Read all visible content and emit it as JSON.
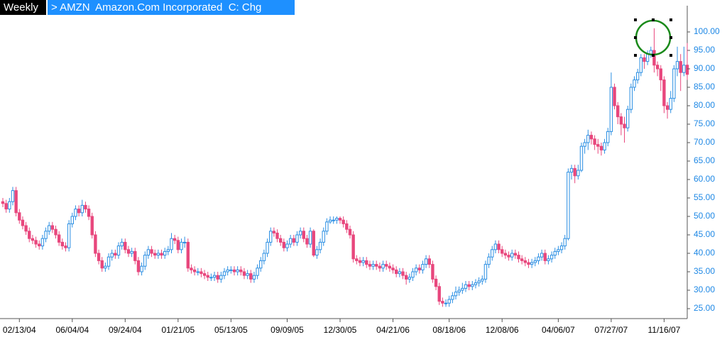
{
  "chart_data": {
    "type": "candlestick",
    "timeframe": "Weekly",
    "title": "> AMZN  Amazon.Com Incorporated  C: Chg",
    "up_color": "#2b8fe3",
    "down_color": "#e8477d",
    "ylim": [
      22.5,
      105
    ],
    "yticks": [
      {
        "value": 25,
        "label": "25.00"
      },
      {
        "value": 30,
        "label": "30.00"
      },
      {
        "value": 35,
        "label": "35.00"
      },
      {
        "value": 40,
        "label": "40.00"
      },
      {
        "value": 45,
        "label": "45.00"
      },
      {
        "value": 50,
        "label": "50.00"
      },
      {
        "value": 55,
        "label": "55.00"
      },
      {
        "value": 60,
        "label": "60.00"
      },
      {
        "value": 65,
        "label": "65.00"
      },
      {
        "value": 70,
        "label": "70.00"
      },
      {
        "value": 75,
        "label": "75.00"
      },
      {
        "value": 80,
        "label": "80.00"
      },
      {
        "value": 85,
        "label": "85.00"
      },
      {
        "value": 90,
        "label": "90.00"
      },
      {
        "value": 95,
        "label": "95.00"
      },
      {
        "value": 100,
        "label": "100.00"
      }
    ],
    "categories": [
      null,
      null,
      null,
      null,
      null,
      "02/13/04",
      null,
      null,
      null,
      null,
      null,
      null,
      null,
      null,
      null,
      null,
      null,
      null,
      null,
      null,
      null,
      "06/04/04",
      null,
      null,
      null,
      null,
      null,
      null,
      null,
      null,
      null,
      null,
      null,
      null,
      null,
      null,
      null,
      "09/24/04",
      null,
      null,
      null,
      null,
      null,
      null,
      null,
      null,
      null,
      null,
      null,
      null,
      null,
      null,
      null,
      "01/21/05",
      null,
      null,
      null,
      null,
      null,
      null,
      null,
      null,
      null,
      null,
      null,
      null,
      null,
      null,
      null,
      "05/13/05",
      null,
      null,
      null,
      null,
      null,
      null,
      null,
      null,
      null,
      null,
      null,
      null,
      null,
      null,
      null,
      null,
      "09/09/05",
      null,
      null,
      null,
      null,
      null,
      null,
      null,
      null,
      null,
      null,
      null,
      null,
      null,
      null,
      null,
      "12/30/05",
      null,
      null,
      null,
      null,
      null,
      null,
      null,
      null,
      null,
      null,
      null,
      null,
      null,
      null,
      null,
      "04/21/06",
      null,
      null,
      null,
      null,
      null,
      null,
      null,
      null,
      null,
      null,
      null,
      null,
      null,
      null,
      null,
      null,
      "08/18/06",
      null,
      null,
      null,
      null,
      null,
      null,
      null,
      null,
      null,
      null,
      null,
      null,
      null,
      null,
      null,
      "12/08/06",
      null,
      null,
      null,
      null,
      null,
      null,
      null,
      null,
      null,
      null,
      null,
      null,
      null,
      null,
      null,
      null,
      "04/06/07",
      null,
      null,
      null,
      null,
      null,
      null,
      null,
      null,
      null,
      null,
      null,
      null,
      null,
      null,
      null,
      "07/27/07",
      null,
      null,
      null,
      null,
      null,
      null,
      null,
      null,
      null,
      null,
      null,
      null,
      null,
      null,
      null,
      "11/16/07",
      null,
      null,
      null,
      null,
      null,
      null,
      null
    ],
    "open": [
      54,
      53.5,
      52,
      54,
      57,
      51,
      49,
      47.5,
      46,
      44,
      43.5,
      42.5,
      42,
      44,
      46,
      47.5,
      46.5,
      45,
      43,
      42,
      41.5,
      48,
      50,
      52,
      51,
      53,
      52,
      50,
      45,
      40,
      38,
      36,
      36.5,
      39,
      40,
      39.5,
      42,
      43,
      41,
      40,
      40.5,
      38,
      35,
      36.5,
      39.5,
      41,
      40,
      39.5,
      40,
      39.5,
      40.5,
      41,
      44,
      43.5,
      41,
      43,
      43,
      36,
      35.5,
      35,
      35,
      34.5,
      34,
      33.5,
      33.5,
      34,
      33,
      34,
      35,
      35.5,
      35.5,
      35,
      35.5,
      35,
      34,
      34.5,
      33,
      34,
      36,
      38,
      40,
      43,
      46,
      45.5,
      44,
      43,
      41.5,
      42.5,
      44,
      43,
      45,
      46,
      44,
      42.5,
      46,
      39.5,
      41,
      43,
      46,
      48.5,
      49,
      49,
      49.5,
      49,
      48,
      46.5,
      45,
      38.5,
      38,
      37.5,
      38,
      37,
      36.5,
      37,
      36.5,
      36,
      37,
      36.5,
      36,
      35.5,
      34.5,
      35,
      34,
      33,
      33.5,
      35,
      36,
      35.5,
      37,
      38.5,
      37,
      33,
      31,
      27,
      26.5,
      26.5,
      27.5,
      28.5,
      29.5,
      30,
      30.5,
      31.5,
      31,
      31.5,
      32,
      32.5,
      33,
      37,
      39,
      41,
      42.5,
      41,
      40,
      39.5,
      39,
      40,
      39.5,
      38.5,
      38,
      37.5,
      37,
      37.5,
      38,
      39,
      40,
      38,
      38.5,
      39.5,
      40.5,
      41,
      42,
      44,
      62,
      63,
      61,
      62.5,
      69,
      70,
      72,
      71,
      69.5,
      69,
      68,
      70,
      73,
      85,
      80,
      77,
      75,
      74,
      79,
      85,
      87,
      89,
      93,
      92,
      94,
      95,
      91,
      90,
      87,
      80,
      79,
      82,
      90,
      92,
      89,
      91
    ],
    "high": [
      55,
      54.5,
      55,
      58,
      58,
      52,
      50,
      48.5,
      47,
      45,
      44.5,
      43.5,
      45,
      47,
      48.5,
      48.5,
      47.5,
      46,
      44,
      43,
      49,
      51,
      53,
      53,
      54.5,
      54,
      53,
      51,
      46,
      41,
      39,
      37.5,
      40,
      41,
      41,
      43,
      44,
      44,
      42,
      41.5,
      41.5,
      39,
      37.5,
      40.5,
      42,
      42,
      41,
      41,
      41,
      41.5,
      42,
      45.5,
      45,
      44.5,
      44,
      44.5,
      44,
      37,
      36.5,
      36,
      36,
      35.5,
      35,
      34.5,
      35,
      35,
      35,
      36,
      36.5,
      36.5,
      36.5,
      36.5,
      36.5,
      36,
      35.5,
      35.5,
      35,
      37,
      39,
      41,
      44,
      47,
      47,
      46.5,
      45,
      44,
      43.5,
      45,
      45,
      46,
      47,
      47,
      45,
      47,
      46.5,
      42,
      44,
      47,
      49.5,
      50,
      50,
      50,
      50,
      50,
      49,
      47.5,
      46,
      39.5,
      39,
      39,
      39,
      38,
      38,
      38,
      37.5,
      38,
      38,
      37.5,
      37,
      36.5,
      36,
      36,
      35,
      34.5,
      36,
      37,
      37,
      38,
      39.5,
      39.5,
      38,
      34,
      32,
      28,
      27.5,
      28.5,
      29.5,
      31,
      31,
      32,
      32.5,
      32.5,
      32.5,
      33,
      33.5,
      34,
      38,
      40,
      42,
      43.5,
      43.5,
      42,
      41,
      40.5,
      41,
      41,
      40.5,
      39.5,
      39,
      38.5,
      38.5,
      39,
      40,
      41,
      41,
      39.5,
      40.5,
      41.5,
      42,
      43,
      45,
      63,
      64,
      64,
      64,
      70,
      71,
      73.5,
      73,
      72,
      71,
      70,
      71,
      74,
      89,
      86,
      81,
      78,
      77,
      80,
      86,
      88,
      90,
      94,
      94,
      95,
      96,
      101,
      92,
      91,
      88,
      81,
      84,
      91,
      96,
      94,
      96,
      97
    ],
    "low": [
      52.5,
      51,
      51,
      53,
      50,
      48,
      46.5,
      45,
      43,
      42.5,
      41.5,
      41,
      41,
      43,
      45,
      45.5,
      44,
      42,
      41,
      40.5,
      40.5,
      47,
      49,
      50,
      50,
      51,
      49,
      44,
      39,
      37,
      35,
      35,
      35.5,
      38,
      38.5,
      38.5,
      41,
      40,
      39,
      39,
      37,
      34,
      34,
      35.5,
      38.5,
      39,
      38.5,
      38.5,
      38.5,
      38.5,
      39.5,
      40,
      42.5,
      40,
      40,
      41.5,
      35,
      34.5,
      34,
      34,
      33.5,
      33,
      32.5,
      32.5,
      32.5,
      32,
      32,
      33,
      34,
      34.5,
      34,
      34,
      34,
      33,
      33,
      32,
      32,
      33,
      35,
      37,
      39,
      42,
      44.5,
      43,
      42,
      40.5,
      40.5,
      41.5,
      42,
      42,
      44,
      43,
      41.5,
      41.5,
      39,
      38.5,
      40,
      42,
      45,
      48,
      48,
      48,
      48,
      47,
      45.5,
      44,
      37.5,
      37,
      36.5,
      36.5,
      36,
      35.5,
      35.5,
      35.5,
      35,
      35,
      35.5,
      35,
      34.5,
      33.5,
      33.5,
      33,
      31.5,
      32,
      32.5,
      34,
      34.5,
      34.5,
      36,
      36,
      32,
      30,
      26,
      25.5,
      25.5,
      25.5,
      26.5,
      27.5,
      28.5,
      29,
      29.5,
      30,
      30,
      30.5,
      31,
      31.5,
      32,
      36,
      38,
      40,
      40,
      39,
      38.5,
      38,
      38,
      38.5,
      37.5,
      37,
      36.5,
      36,
      36,
      36.5,
      37,
      38,
      37,
      37,
      37.5,
      38.5,
      39.5,
      40,
      41,
      43.5,
      60,
      59,
      60,
      62,
      67,
      68,
      69.5,
      68,
      67,
      66.5,
      67,
      69,
      72,
      79,
      75,
      72,
      70,
      73,
      78,
      84,
      86,
      88,
      90,
      91,
      93,
      89,
      88,
      84,
      78,
      76.5,
      78,
      81,
      88,
      84,
      88,
      87
    ],
    "close": [
      53.5,
      52,
      54,
      57,
      51,
      49,
      47.5,
      46,
      44,
      43.5,
      42.5,
      42,
      44,
      46,
      47.5,
      46.5,
      45,
      43,
      42,
      41.5,
      48,
      50,
      52,
      51,
      53,
      52,
      50,
      45,
      40,
      38,
      36,
      36.5,
      39,
      40,
      39.5,
      42,
      43,
      41,
      40,
      40.5,
      38,
      35,
      36.5,
      39.5,
      41,
      40,
      39.5,
      40,
      39.5,
      40.5,
      41,
      44,
      43.5,
      41,
      43,
      43,
      36,
      35.5,
      35,
      35,
      34.5,
      34,
      33.5,
      33.5,
      34,
      33,
      34,
      35,
      35.5,
      35.5,
      35,
      35.5,
      35,
      34,
      34.5,
      33,
      34,
      36,
      38,
      40,
      43,
      46,
      45.5,
      44,
      43,
      41.5,
      42.5,
      44,
      43,
      45,
      46,
      44,
      42.5,
      46,
      39.5,
      41,
      43,
      46,
      48.5,
      49,
      49,
      49.5,
      49,
      48,
      46.5,
      45,
      38.5,
      38,
      37.5,
      38,
      37,
      36.5,
      37,
      36.5,
      36,
      37,
      36.5,
      36,
      35.5,
      34.5,
      35,
      34,
      33,
      33.5,
      35,
      36,
      35.5,
      37,
      38.5,
      37,
      33,
      31,
      27,
      26.5,
      26.5,
      27.5,
      28.5,
      29.5,
      30,
      30.5,
      31.5,
      31,
      31.5,
      32,
      32.5,
      33,
      37,
      39,
      41,
      42.5,
      41,
      40,
      39.5,
      39,
      40,
      39.5,
      38.5,
      38,
      37.5,
      37,
      37.5,
      38,
      39,
      40,
      38,
      38.5,
      39.5,
      40.5,
      41,
      42,
      44,
      62,
      63,
      61,
      62.5,
      69,
      70,
      72,
      71,
      69.5,
      69,
      68,
      70,
      73,
      85,
      80,
      77,
      75,
      74,
      79,
      85,
      87,
      89,
      93,
      92,
      94,
      95,
      91,
      90,
      87,
      80,
      79,
      82,
      90,
      92,
      89,
      91,
      88.5
    ]
  }
}
